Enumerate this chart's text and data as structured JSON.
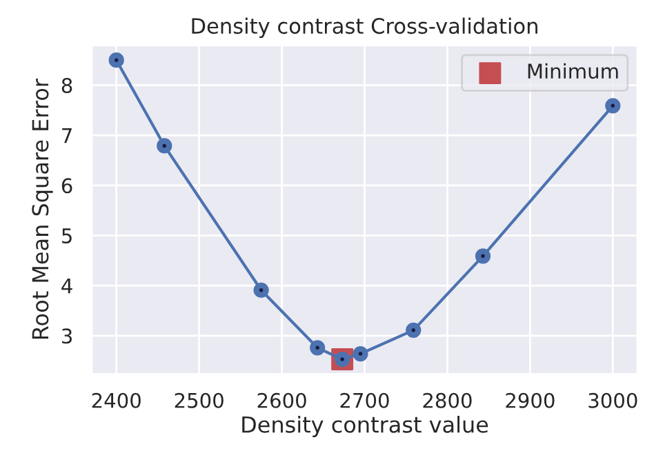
{
  "chart_data": {
    "type": "line",
    "title": "Density contrast Cross-validation",
    "xlabel": "Density contrast value",
    "ylabel": "Root Mean Square Error",
    "series": [
      {
        "color": "#4c72b0",
        "marker": "circle",
        "x": [
          2400,
          2458,
          2575,
          2643,
          2673,
          2695,
          2759,
          2843,
          3000
        ],
        "values": [
          8.5,
          6.79,
          3.91,
          2.76,
          2.53,
          2.64,
          3.11,
          4.59,
          7.59
        ]
      },
      {
        "type": "scatter",
        "name": "Minimum",
        "color": "#c44e52",
        "marker": "square",
        "x": [
          2673
        ],
        "values": [
          2.53
        ]
      }
    ],
    "xlim": [
      2370,
      3030
    ],
    "ylim": [
      2.23,
      8.8
    ],
    "xticks": [
      2400,
      2500,
      2600,
      2700,
      2800,
      2900,
      3000
    ],
    "yticks": [
      3,
      4,
      5,
      6,
      7,
      8
    ],
    "grid": true,
    "legend": "top right"
  }
}
